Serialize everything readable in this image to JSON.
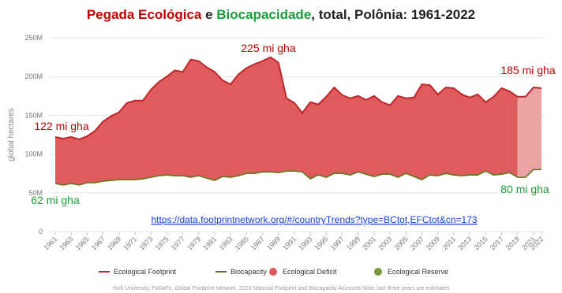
{
  "chart_data": {
    "type": "area-line",
    "title": [
      {
        "text": "Pegada Ecológica",
        "color": "#c00000"
      },
      {
        "text": "e",
        "color": "#222222"
      },
      {
        "text": "Biocapacidade",
        "color": "#1a9e3a"
      },
      {
        "text": ", total, Polônia: 1961-2022",
        "color": "#222222"
      }
    ],
    "y_label": "global hectares",
    "x": [
      1961,
      1962,
      1963,
      1964,
      1965,
      1966,
      1967,
      1968,
      1969,
      1970,
      1971,
      1972,
      1973,
      1974,
      1975,
      1976,
      1977,
      1978,
      1979,
      1980,
      1981,
      1982,
      1983,
      1984,
      1985,
      1986,
      1987,
      1988,
      1989,
      1990,
      1991,
      1992,
      1993,
      1994,
      1995,
      1996,
      1997,
      1998,
      1999,
      2000,
      2001,
      2002,
      2003,
      2004,
      2005,
      2006,
      2007,
      2008,
      2009,
      2010,
      2011,
      2012,
      2013,
      2014,
      2015,
      2016,
      2017,
      2018,
      2019,
      2020,
      2021,
      2022
    ],
    "series": [
      {
        "name": "Ecological Footprint",
        "color": "#c0262b",
        "values": [
          122000000,
          120000000,
          122000000,
          119000000,
          123000000,
          130000000,
          142000000,
          149000000,
          154000000,
          166000000,
          169000000,
          169000000,
          183000000,
          193000000,
          200000000,
          208000000,
          206000000,
          222000000,
          220000000,
          212000000,
          206000000,
          195000000,
          190000000,
          203000000,
          211000000,
          216000000,
          220000000,
          225000000,
          218000000,
          172000000,
          166000000,
          153000000,
          167000000,
          164000000,
          174000000,
          186000000,
          176000000,
          172000000,
          175000000,
          170000000,
          175000000,
          167000000,
          163000000,
          175000000,
          172000000,
          173000000,
          190000000,
          189000000,
          177000000,
          186000000,
          185000000,
          177000000,
          173000000,
          177000000,
          167000000,
          174000000,
          185000000,
          181000000,
          174000000,
          174000000,
          186000000,
          185000000
        ]
      },
      {
        "name": "Biocapacity",
        "color": "#5a7a1e",
        "values": [
          62000000,
          60000000,
          62000000,
          60000000,
          63000000,
          63000000,
          65000000,
          66000000,
          67000000,
          67000000,
          67000000,
          68000000,
          70000000,
          72000000,
          73000000,
          72000000,
          72000000,
          70000000,
          72000000,
          69000000,
          66000000,
          71000000,
          70000000,
          72000000,
          75000000,
          75000000,
          77000000,
          77000000,
          76000000,
          78000000,
          78000000,
          77000000,
          68000000,
          73000000,
          70000000,
          75000000,
          75000000,
          73000000,
          77000000,
          74000000,
          71000000,
          74000000,
          74000000,
          70000000,
          75000000,
          71000000,
          67000000,
          73000000,
          72000000,
          75000000,
          73000000,
          72000000,
          73000000,
          73000000,
          78000000,
          73000000,
          74000000,
          76000000,
          70000000,
          70000000,
          80000000,
          80000000
        ]
      }
    ],
    "areas": [
      {
        "name": "Ecological Deficit",
        "color": "#e05b5b",
        "estimate_color": "#eba3a3"
      },
      {
        "name": "Ecological Reserve",
        "color": "#7a9a3a"
      }
    ],
    "estimate_start": 2019,
    "xlim": [
      1961,
      2022
    ],
    "xticks": [
      1961,
      1963,
      1965,
      1967,
      1969,
      1971,
      1973,
      1975,
      1977,
      1979,
      1981,
      1983,
      1985,
      1987,
      1989,
      1991,
      1993,
      1995,
      1997,
      1999,
      2001,
      2003,
      2005,
      2007,
      2009,
      2011,
      2013,
      2015,
      2017,
      2019,
      2021,
      2022
    ],
    "ylim": [
      0,
      250000000
    ],
    "yticks": [
      0,
      {
        "value": 50000000,
        "label": "50M"
      },
      {
        "value": 100000000,
        "label": "100M"
      },
      {
        "value": 150000000,
        "label": "150M"
      },
      {
        "value": 200000000,
        "label": "200M"
      },
      {
        "value": 250000000,
        "label": "250M"
      }
    ],
    "grid": true,
    "annotations": [
      {
        "text": "225 mi gha",
        "color": "#c00000"
      },
      {
        "text": "122 mi gha",
        "color": "#c00000"
      },
      {
        "text": "185 mi gha",
        "color": "#c00000"
      },
      {
        "text": "62 mi gha",
        "color": "#1a9e3a"
      },
      {
        "text": "80 mi gha",
        "color": "#1a9e3a"
      }
    ],
    "link": "https://data.footprintnetwork.org/#/countryTrends?type=BCtot,EFCtot&cn=173",
    "footer": "York University, FoDaFo, Global Footprint Network, 2023 National Footprint and Biocapacity Accounts Note: last three years are estimates"
  }
}
